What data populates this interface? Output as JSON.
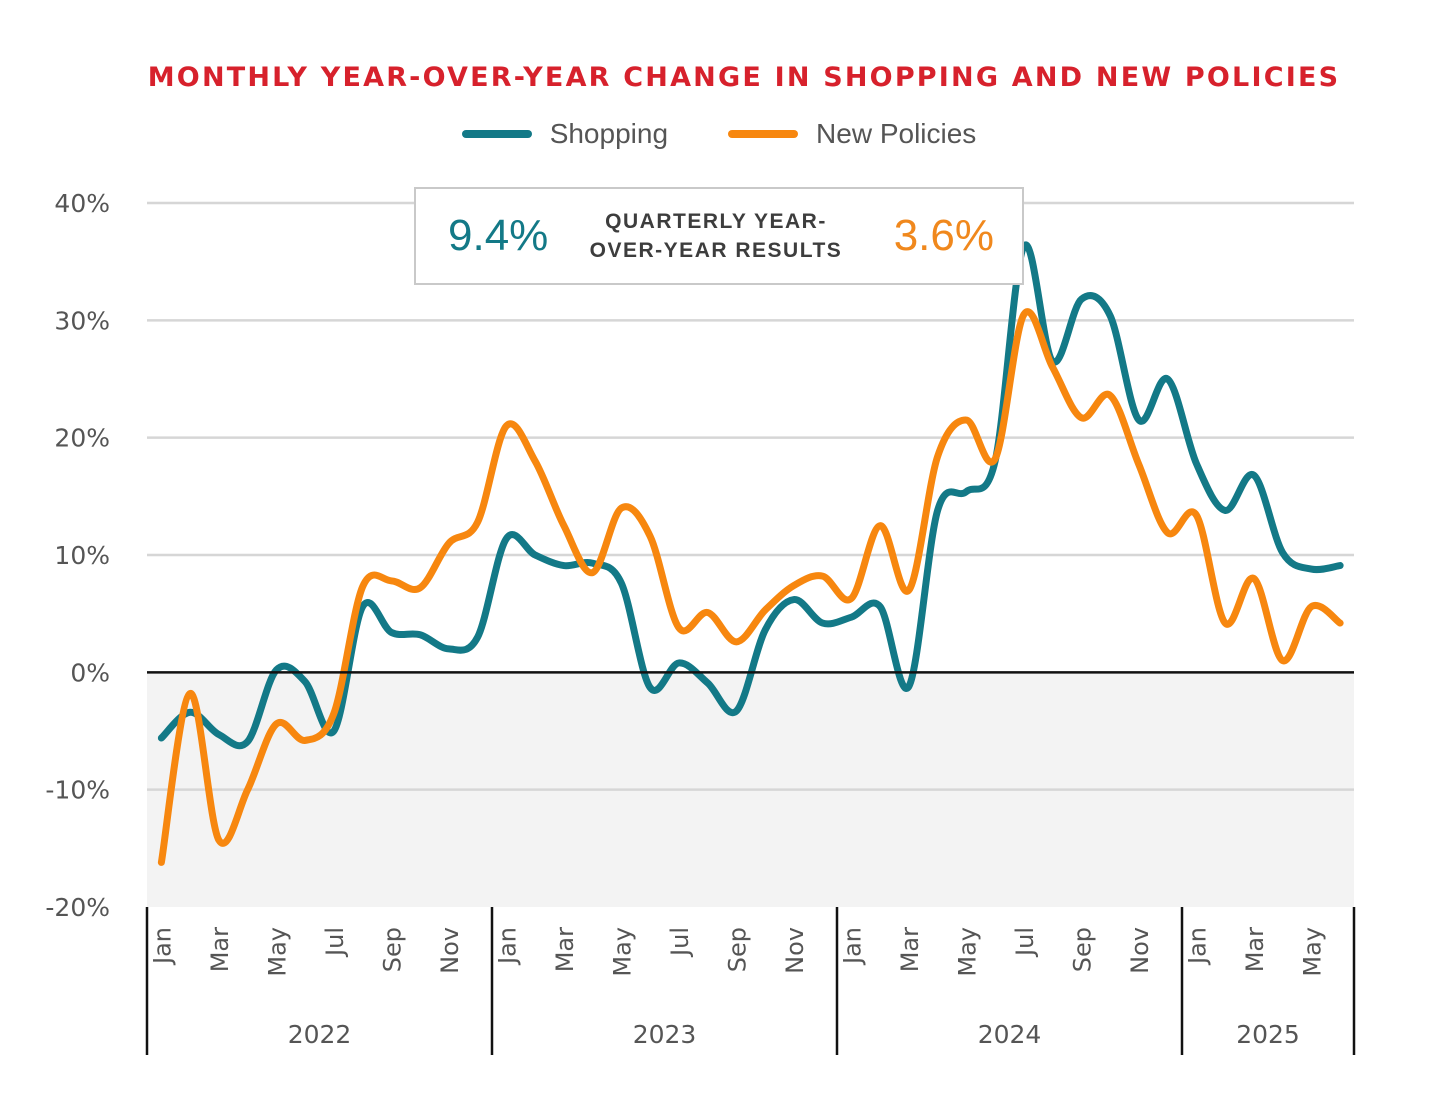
{
  "chart_data": {
    "type": "line",
    "title": "MONTHLY YEAR-OVER-YEAR CHANGE IN SHOPPING AND NEW POLICIES",
    "xlabel": "",
    "ylabel": "",
    "ylim": [
      -20,
      40
    ],
    "yticks": [
      40,
      30,
      20,
      10,
      0,
      -10,
      -20
    ],
    "ytick_labels": [
      "40%",
      "30%",
      "20%",
      "10%",
      "0%",
      "-10%",
      "-20%"
    ],
    "grid": true,
    "negative_region_shaded": true,
    "legend_position": "top-center",
    "years": [
      "2022",
      "2023",
      "2024",
      "2025"
    ],
    "months_per_year": [
      12,
      12,
      12,
      6
    ],
    "month_tick_labels": [
      "Jan",
      "Mar",
      "May",
      "Jul",
      "Sep",
      "Nov"
    ],
    "x": [
      "Jan 2022",
      "Feb 2022",
      "Mar 2022",
      "Apr 2022",
      "May 2022",
      "Jun 2022",
      "Jul 2022",
      "Aug 2022",
      "Sep 2022",
      "Oct 2022",
      "Nov 2022",
      "Dec 2022",
      "Jan 2023",
      "Feb 2023",
      "Mar 2023",
      "Apr 2023",
      "May 2023",
      "Jun 2023",
      "Jul 2023",
      "Aug 2023",
      "Sep 2023",
      "Oct 2023",
      "Nov 2023",
      "Dec 2023",
      "Jan 2024",
      "Feb 2024",
      "Mar 2024",
      "Apr 2024",
      "May 2024",
      "Jun 2024",
      "Jul 2024",
      "Aug 2024",
      "Sep 2024",
      "Oct 2024",
      "Nov 2024",
      "Dec 2024",
      "Jan 2025",
      "Feb 2025",
      "Mar 2025",
      "Apr 2025",
      "May 2025",
      "Jun 2025"
    ],
    "series": [
      {
        "name": "Shopping",
        "color": "#137987",
        "values": [
          -5.6,
          -3.4,
          -5.3,
          -5.9,
          0.2,
          -0.8,
          -5.0,
          5.6,
          3.4,
          3.2,
          2.0,
          3.0,
          11.4,
          10.0,
          9.1,
          9.3,
          7.6,
          -1.3,
          0.8,
          -0.9,
          -3.3,
          3.6,
          6.2,
          4.2,
          4.7,
          5.6,
          -1.2,
          13.8,
          15.4,
          18.0,
          36.3,
          26.5,
          31.8,
          30.4,
          21.5,
          25.0,
          17.8,
          13.8,
          16.8,
          10.2,
          8.8,
          9.1
        ]
      },
      {
        "name": "New Policies",
        "color": "#f7870f",
        "values": [
          -16.2,
          -1.8,
          -14.3,
          -10.0,
          -4.4,
          -5.8,
          -3.5,
          7.3,
          7.8,
          7.2,
          11.0,
          12.8,
          21.0,
          18.0,
          12.5,
          8.5,
          14.0,
          11.6,
          3.8,
          5.1,
          2.6,
          5.3,
          7.4,
          8.2,
          6.3,
          12.5,
          7.0,
          18.4,
          21.5,
          18.2,
          30.5,
          26.0,
          21.7,
          23.6,
          17.7,
          11.9,
          13.4,
          4.2,
          8.0,
          1.0,
          5.6,
          4.2
        ]
      }
    ],
    "annotation": {
      "shopping_value": "9.4%",
      "label": "QUARTERLY YEAR-OVER-YEAR RESULTS",
      "label_line1": "QUARTERLY YEAR-",
      "label_line2": "OVER-YEAR RESULTS",
      "new_policies_value": "3.6%"
    }
  },
  "legend": {
    "shopping": "Shopping",
    "new_policies": "New Policies"
  },
  "colors": {
    "title": "#d7212c",
    "shopping": "#137987",
    "new_policies": "#f7870f"
  }
}
